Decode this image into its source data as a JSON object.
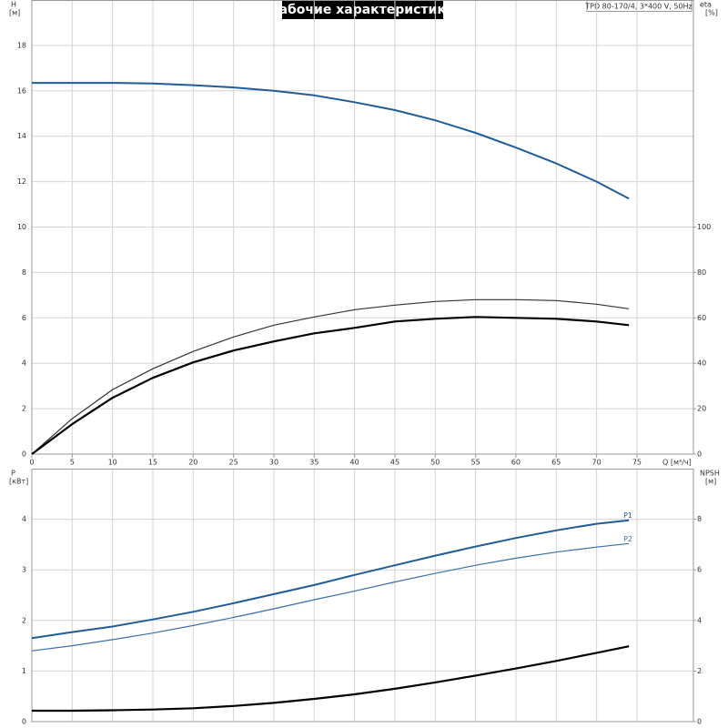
{
  "chart_data": [
    {
      "type": "line",
      "title": "Рабочие характеристики",
      "annotation": "TPD 80-170/4, 3*400 V, 50Hz",
      "xlabel": "Q [м³/ч]",
      "ylabel": "H",
      "yunit": "[м]",
      "y2label": "eta",
      "y2unit": "[%]",
      "x": [
        0,
        5,
        10,
        15,
        20,
        25,
        30,
        35,
        40,
        45,
        50,
        55,
        60,
        65,
        70,
        74
      ],
      "xlim": [
        0,
        82
      ],
      "xticks": [
        0,
        5,
        10,
        15,
        20,
        25,
        30,
        35,
        40,
        45,
        50,
        55,
        60,
        65,
        70,
        75
      ],
      "ylim": [
        0,
        20
      ],
      "yticks": [
        0,
        2,
        4,
        6,
        8,
        10,
        12,
        14,
        16,
        18
      ],
      "y2lim": [
        0,
        200
      ],
      "y2ticks": [
        0,
        20,
        40,
        60,
        80,
        100
      ],
      "grid": true,
      "series": [
        {
          "color": "#1f5c99",
          "width": 2,
          "values": [
            16.35,
            16.35,
            16.35,
            16.32,
            16.25,
            16.15,
            16.0,
            15.8,
            15.5,
            15.15,
            14.7,
            14.15,
            13.5,
            12.8,
            12.0,
            11.25
          ]
        },
        {
          "color": "#333333",
          "width": 1.2,
          "axis": "y2",
          "values": [
            0,
            15.6,
            28.4,
            37.6,
            45.2,
            51.6,
            56.8,
            60.4,
            63.6,
            65.6,
            67.2,
            68,
            68,
            67.6,
            66,
            64
          ]
        },
        {
          "color": "#000000",
          "width": 2.2,
          "axis": "y2",
          "values": [
            0,
            13.2,
            24.8,
            33.6,
            40.4,
            45.6,
            49.6,
            53.2,
            55.6,
            58.4,
            59.6,
            60.4,
            60,
            59.6,
            58.4,
            56.8
          ]
        }
      ]
    },
    {
      "type": "line",
      "ylabel": "P",
      "yunit": "[кВт]",
      "y2label": "NPSH",
      "y2unit": "[м]",
      "x": [
        0,
        5,
        10,
        15,
        20,
        25,
        30,
        35,
        40,
        45,
        50,
        55,
        60,
        65,
        70,
        74
      ],
      "ylim": [
        0,
        5
      ],
      "yticks": [
        0,
        1,
        2,
        3,
        4
      ],
      "y2lim": [
        0,
        10
      ],
      "y2ticks": [
        0,
        2,
        4,
        6,
        8
      ],
      "grid": true,
      "series": [
        {
          "name": "P1",
          "color": "#1f5c99",
          "width": 2,
          "values": [
            1.65,
            1.77,
            1.88,
            2.02,
            2.17,
            2.34,
            2.52,
            2.7,
            2.9,
            3.09,
            3.28,
            3.46,
            3.63,
            3.78,
            3.91,
            3.98
          ]
        },
        {
          "name": "P2",
          "color": "#3a6fa8",
          "width": 1.2,
          "values": [
            1.4,
            1.5,
            1.62,
            1.75,
            1.9,
            2.06,
            2.23,
            2.41,
            2.58,
            2.76,
            2.93,
            3.09,
            3.23,
            3.35,
            3.45,
            3.52
          ]
        },
        {
          "color": "#000000",
          "width": 2.2,
          "axis": "y2",
          "values": [
            0.43,
            0.43,
            0.45,
            0.48,
            0.53,
            0.62,
            0.74,
            0.9,
            1.08,
            1.3,
            1.55,
            1.82,
            2.1,
            2.4,
            2.72,
            2.98
          ]
        }
      ]
    }
  ]
}
